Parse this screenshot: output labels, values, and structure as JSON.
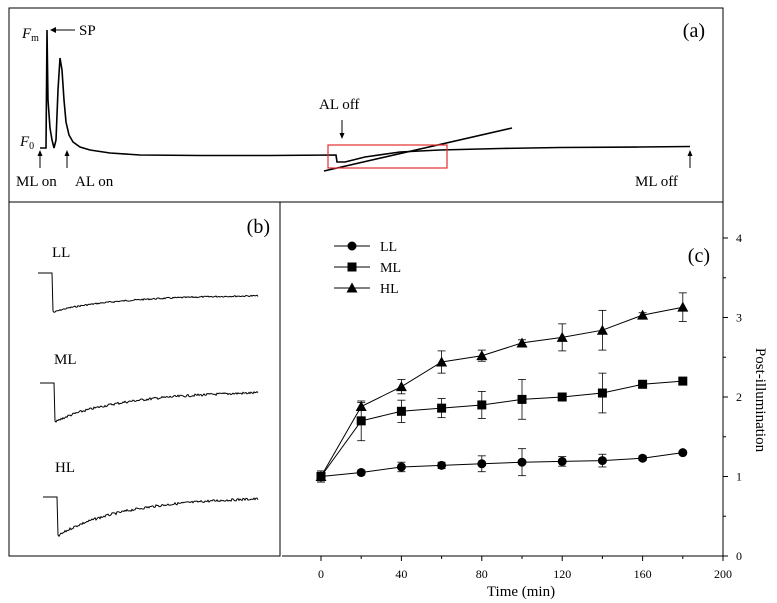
{
  "panel_a": {
    "label": "(a)",
    "fm_label": "F",
    "fm_sub": "m",
    "f0_label": "F",
    "f0_sub": "0",
    "sp_label": "SP",
    "ml_on_label": "ML on",
    "al_on_label": "AL on",
    "al_off_label": "AL off",
    "ml_off_label": "ML off",
    "highlight_color": "#e23030"
  },
  "panel_b": {
    "label": "(b)",
    "traces": [
      {
        "name": "LL",
        "recovery": 0.42
      },
      {
        "name": "ML",
        "recovery": 0.78
      },
      {
        "name": "HL",
        "recovery": 1.0
      }
    ]
  },
  "chart_data": {
    "type": "line",
    "panel_label": "(c)",
    "title": "",
    "xlabel": "Time  (min)",
    "ylabel": "Post-illumination",
    "xlim": [
      0,
      200
    ],
    "ylim": [
      0,
      4
    ],
    "xticks": [
      "0",
      "40",
      "80",
      "120",
      "160",
      "200"
    ],
    "yticks": [
      "0",
      "1",
      "2",
      "3",
      "4"
    ],
    "x": [
      0,
      20,
      40,
      60,
      80,
      100,
      120,
      140,
      160,
      180
    ],
    "legend_position": "top-left",
    "series": [
      {
        "name": "LL",
        "marker": "circle",
        "values": [
          1.0,
          1.05,
          1.12,
          1.14,
          1.16,
          1.18,
          1.19,
          1.2,
          1.23,
          1.3
        ],
        "errors": [
          0.07,
          0.03,
          0.06,
          0.04,
          0.1,
          0.17,
          0.06,
          0.08,
          0.03,
          0.02
        ]
      },
      {
        "name": "ML",
        "marker": "square",
        "values": [
          1.0,
          1.7,
          1.82,
          1.86,
          1.9,
          1.97,
          2.0,
          2.05,
          2.16,
          2.2
        ],
        "errors": [
          0.07,
          0.25,
          0.14,
          0.12,
          0.17,
          0.25,
          0.03,
          0.25,
          0.03,
          0.03
        ]
      },
      {
        "name": "HL",
        "marker": "triangle",
        "values": [
          1.0,
          1.88,
          2.13,
          2.44,
          2.52,
          2.68,
          2.75,
          2.84,
          3.03,
          3.13
        ],
        "errors": [
          0.07,
          0.05,
          0.09,
          0.14,
          0.07,
          0.04,
          0.17,
          0.25,
          0.03,
          0.18
        ]
      }
    ]
  }
}
